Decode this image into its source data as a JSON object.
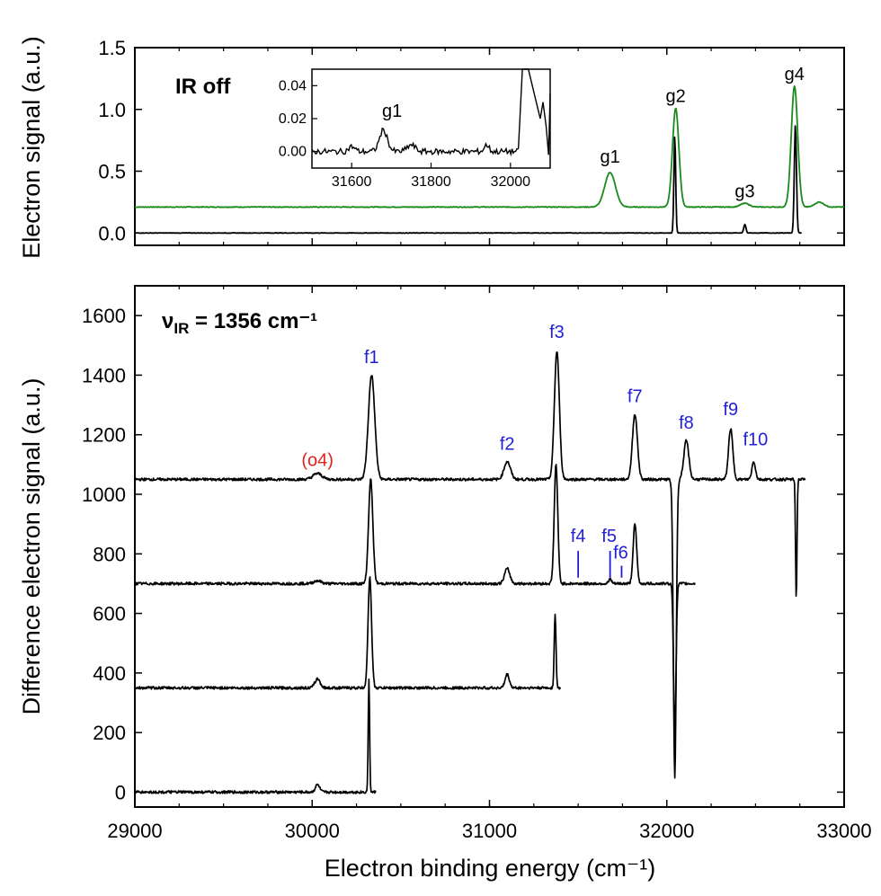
{
  "colors": {
    "ir_off_trace": "#1a8a1a",
    "main_trace": "#000000",
    "f_labels": "#1f1fd6",
    "o_label": "#e02020"
  },
  "chart_data": [
    {
      "type": "line",
      "panel": "top",
      "annotation": "IR off",
      "xlabel": "Electron binding energy (cm⁻¹)",
      "ylabel": "Electron signal (a.u.)",
      "xlim": [
        29000,
        33000
      ],
      "ylim": [
        -0.1,
        1.5
      ],
      "xticks": [
        29000,
        30000,
        31000,
        32000,
        33000
      ],
      "yticks": [
        "0.0",
        "0.5",
        "1.0",
        "1.5"
      ],
      "series": [
        {
          "baseline": 0.21,
          "peaks": [
            {
              "x": 31680,
              "height": 0.28,
              "width": 30
            },
            {
              "x": 32050,
              "height": 0.8,
              "width": 18
            },
            {
              "x": 32440,
              "height": 0.03,
              "width": 25
            },
            {
              "x": 32720,
              "height": 0.98,
              "width": 18
            },
            {
              "x": 32860,
              "height": 0.04,
              "width": 25
            }
          ],
          "x_range": [
            29000,
            33000
          ]
        },
        {
          "baseline": 0.0,
          "peaks": [
            {
              "x": 32045,
              "height": 0.79,
              "width": 5
            },
            {
              "x": 32440,
              "height": 0.07,
              "width": 6
            },
            {
              "x": 32725,
              "height": 0.88,
              "width": 6
            }
          ],
          "x_range": [
            29000,
            32760
          ]
        }
      ],
      "labels": [
        {
          "text": "g1",
          "x": 31680,
          "y": 0.57
        },
        {
          "text": "g2",
          "x": 32050,
          "y": 1.06
        },
        {
          "text": "g3",
          "x": 32440,
          "y": 0.29
        },
        {
          "text": "g4",
          "x": 32720,
          "y": 1.24
        }
      ],
      "inset": {
        "xlim": [
          31500,
          32100
        ],
        "ylim": [
          -0.01,
          0.05
        ],
        "xticks": [
          31600,
          31800,
          32000
        ],
        "yticks": [
          "0.00",
          "0.02",
          "0.04"
        ],
        "label": {
          "text": "g1",
          "x": 31680,
          "y": 0.022
        },
        "peaks": [
          {
            "x": 31680,
            "height": 0.013,
            "width": 10
          },
          {
            "x": 31600,
            "height": 0.003,
            "width": 8
          },
          {
            "x": 31750,
            "height": 0.004,
            "width": 10
          },
          {
            "x": 31940,
            "height": 0.004,
            "width": 6
          }
        ]
      }
    },
    {
      "type": "line",
      "panel": "bottom",
      "annotation": "ν",
      "annotation_sub": "IR",
      "annotation_rest": " = 1356 cm⁻¹",
      "xlabel": "Electron binding energy (cm⁻¹)",
      "ylabel": "Difference electron signal (a.u.)",
      "xlim": [
        29000,
        33000
      ],
      "ylim": [
        -50,
        1700
      ],
      "xticks": [
        "29000",
        "30000",
        "31000",
        "32000",
        "33000"
      ],
      "yticks": [
        "0",
        "200",
        "400",
        "600",
        "800",
        "1000",
        "1200",
        "1400",
        "1600"
      ],
      "series": [
        {
          "offset": 1050,
          "x_range": [
            29000,
            32780
          ],
          "peaks": [
            {
              "x": 30030,
              "height": 20,
              "width": 25
            },
            {
              "x": 30335,
              "height": 350,
              "width": 18
            },
            {
              "x": 31100,
              "height": 60,
              "width": 18
            },
            {
              "x": 31380,
              "height": 430,
              "width": 14
            },
            {
              "x": 31820,
              "height": 220,
              "width": 14
            },
            {
              "x": 32045,
              "height": -1000,
              "width": 8
            },
            {
              "x": 32110,
              "height": 130,
              "width": 14
            },
            {
              "x": 32360,
              "height": 170,
              "width": 12
            },
            {
              "x": 32490,
              "height": 60,
              "width": 10
            },
            {
              "x": 32730,
              "height": -400,
              "width": 4
            }
          ]
        },
        {
          "offset": 700,
          "x_range": [
            29000,
            32160
          ],
          "peaks": [
            {
              "x": 30030,
              "height": 10,
              "width": 20
            },
            {
              "x": 30330,
              "height": 350,
              "width": 12
            },
            {
              "x": 31100,
              "height": 50,
              "width": 15
            },
            {
              "x": 31375,
              "height": 400,
              "width": 10
            },
            {
              "x": 31680,
              "height": 15,
              "width": 8
            },
            {
              "x": 31820,
              "height": 200,
              "width": 10
            },
            {
              "x": 32045,
              "height": -510,
              "width": 7
            }
          ]
        },
        {
          "offset": 350,
          "x_range": [
            29000,
            31400
          ],
          "peaks": [
            {
              "x": 30030,
              "height": 30,
              "width": 15
            },
            {
              "x": 30325,
              "height": 370,
              "width": 10
            },
            {
              "x": 31100,
              "height": 45,
              "width": 12
            },
            {
              "x": 31370,
              "height": 250,
              "width": 5
            }
          ]
        },
        {
          "offset": 0,
          "x_range": [
            29000,
            30360
          ],
          "peaks": [
            {
              "x": 30030,
              "height": 25,
              "width": 12
            },
            {
              "x": 30320,
              "height": 375,
              "width": 4
            }
          ]
        }
      ],
      "labels": [
        {
          "text": "(o4)",
          "x": 30030,
          "y": 1095,
          "color": "red"
        },
        {
          "text": "f1",
          "x": 30335,
          "y": 1440,
          "color": "blue"
        },
        {
          "text": "f2",
          "x": 31100,
          "y": 1150,
          "color": "blue"
        },
        {
          "text": "f3",
          "x": 31380,
          "y": 1525,
          "color": "blue"
        },
        {
          "text": "f4",
          "x": 31500,
          "y": 840,
          "color": "blue"
        },
        {
          "text": "f5",
          "x": 31675,
          "y": 840,
          "color": "blue"
        },
        {
          "text": "f6",
          "x": 31740,
          "y": 785,
          "color": "blue"
        },
        {
          "text": "f7",
          "x": 31820,
          "y": 1310,
          "color": "blue"
        },
        {
          "text": "f8",
          "x": 32110,
          "y": 1220,
          "color": "blue"
        },
        {
          "text": "f9",
          "x": 32360,
          "y": 1265,
          "color": "blue"
        },
        {
          "text": "f10",
          "x": 32500,
          "y": 1165,
          "color": "blue"
        }
      ],
      "markers": [
        {
          "x": 31500,
          "y0": 720,
          "y1": 810
        },
        {
          "x": 31680,
          "y0": 720,
          "y1": 810
        },
        {
          "x": 31745,
          "y0": 720,
          "y1": 760
        }
      ]
    }
  ]
}
